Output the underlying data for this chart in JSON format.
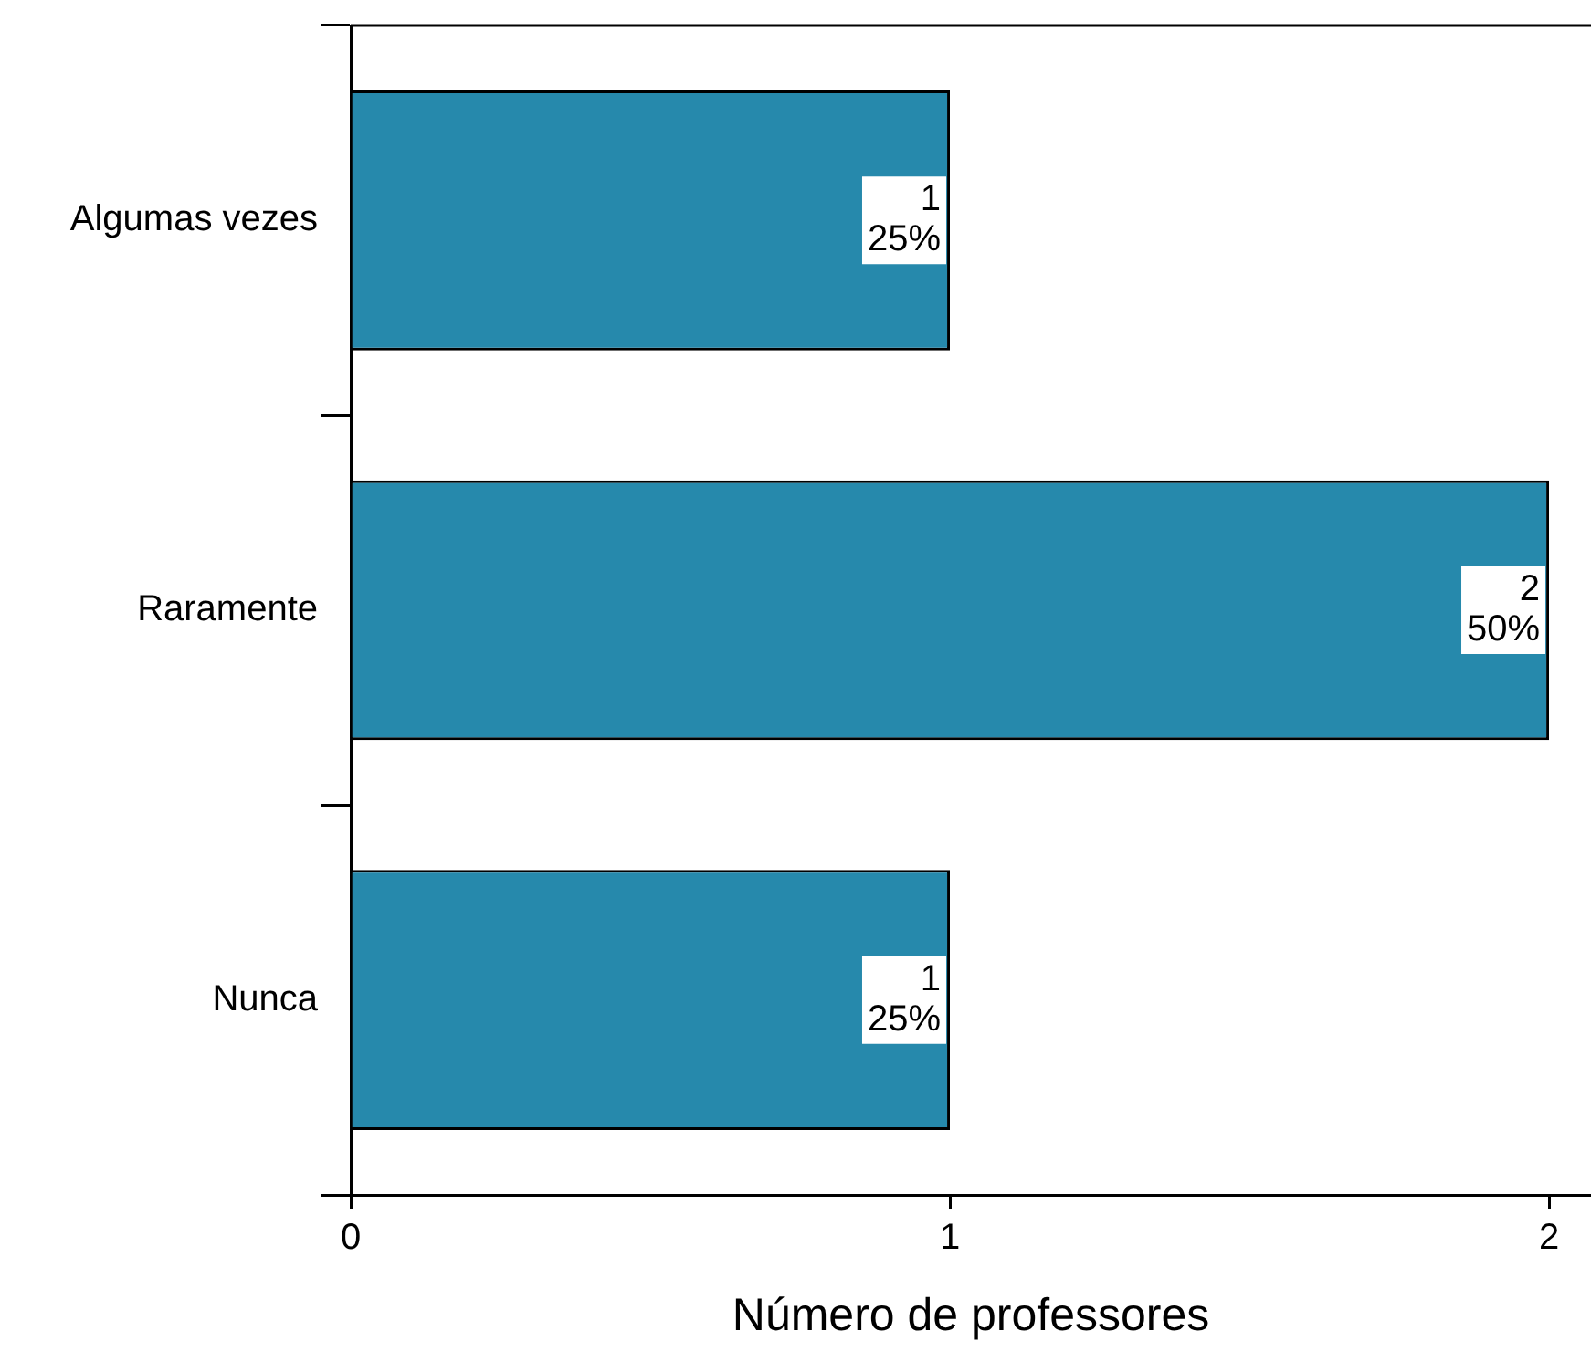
{
  "chart_data": {
    "type": "bar",
    "orientation": "horizontal",
    "xlabel": "Número de professores",
    "categories": [
      "Algumas vezes",
      "Raramente",
      "Nunca"
    ],
    "values": [
      1,
      2,
      1
    ],
    "color": "#2689ac",
    "value_labels": [
      "1\n25%",
      "2\n50%",
      "1\n25%"
    ],
    "xlim": [
      0,
      2.07
    ],
    "xticks": [
      0,
      1,
      2
    ],
    "grid": false,
    "legend": false
  }
}
